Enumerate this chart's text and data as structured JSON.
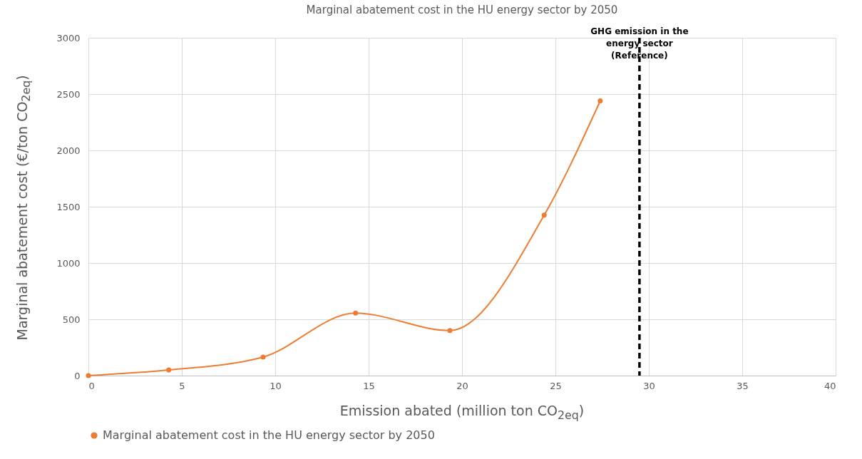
{
  "chart_data": {
    "type": "line",
    "title": "Marginal abatement cost in the HU energy sector by 2050",
    "xlabel": "Emission abated (million ton CO$_{2eq}$)",
    "ylabel": "Marginal abatement cost (€/ton CO$_{2eq}$)",
    "x": [
      0,
      4.3,
      9.35,
      14.3,
      19.35,
      24.4,
      27.4
    ],
    "series": [
      {
        "name": "Marginal abatement cost in the HU energy sector by 2050",
        "color": "#ed7d31",
        "values": [
          0,
          50,
          165,
          555,
          400,
          1425,
          2440
        ]
      }
    ],
    "xlim": [
      0,
      40
    ],
    "xticks": [
      0,
      5,
      10,
      15,
      20,
      25,
      30,
      35,
      40
    ],
    "ylim": [
      0,
      3000
    ],
    "yticks": [
      0,
      500,
      1000,
      1500,
      2000,
      2500,
      3000
    ],
    "ref_lines": [
      {
        "axis": "x",
        "value": 29.5,
        "label": "GHG emission in the energy sector (Reference)",
        "color": "#000000",
        "line_style": "dashed"
      }
    ],
    "grid": true,
    "legend": "bottom",
    "marker": "circle",
    "line_style": "solid"
  }
}
